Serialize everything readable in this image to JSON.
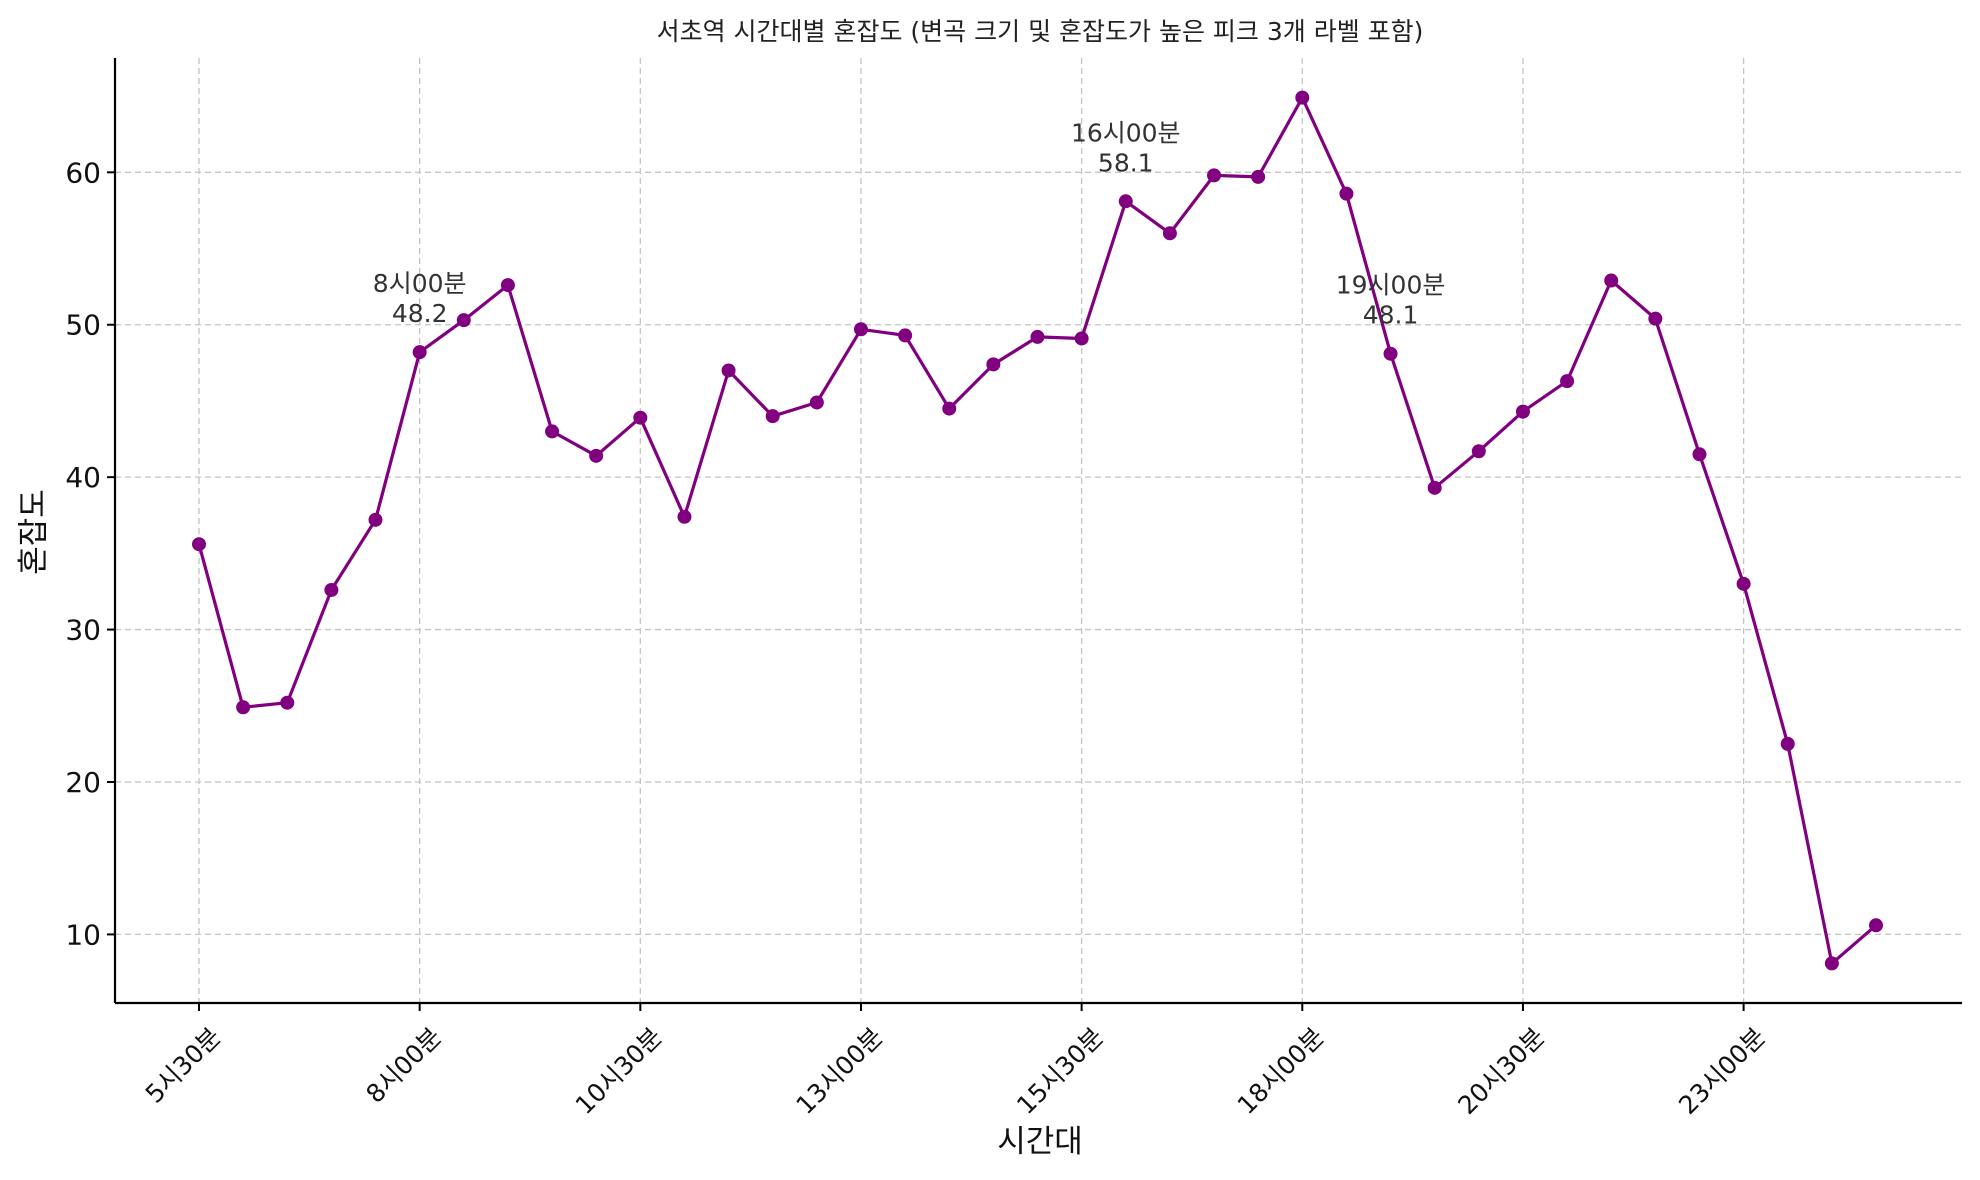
{
  "chart_data": {
    "type": "line",
    "title": "서초역 시간대별 혼잡도 (변곡 크기 및 혼잡도가 높은 피크 3개 라벨 포함)",
    "xlabel": "시간대",
    "ylabel": "혼잡도",
    "ylim": [
      5.5,
      67.5
    ],
    "yticks": [
      10,
      20,
      30,
      40,
      50,
      60
    ],
    "grid": true,
    "line_color": "#800080",
    "categories": [
      "5시30분",
      "6시00분",
      "6시30분",
      "7시00분",
      "7시30분",
      "8시00분",
      "8시30분",
      "9시00분",
      "9시30분",
      "10시00분",
      "10시30분",
      "11시00분",
      "11시30분",
      "12시00분",
      "12시30분",
      "13시00분",
      "13시30분",
      "14시00분",
      "14시30분",
      "15시00분",
      "15시30분",
      "16시00분",
      "16시30분",
      "17시00분",
      "17시30분",
      "18시00분",
      "18시30분",
      "19시00분",
      "19시30분",
      "20시00분",
      "20시30분",
      "21시00분",
      "21시30분",
      "22시00분",
      "22시30분",
      "23시00분",
      "23시30분",
      "24시00분",
      "24시30분"
    ],
    "xtick_labels": [
      "5시30분",
      "8시00분",
      "10시30분",
      "13시00분",
      "15시30분",
      "18시00분",
      "20시30분",
      "23시00분"
    ],
    "series": [
      {
        "values": [
          35.6,
          24.9,
          25.2,
          32.6,
          37.2,
          48.2,
          50.3,
          52.6,
          43.0,
          41.4,
          43.9,
          37.4,
          47.0,
          44.0,
          44.9,
          49.7,
          49.3,
          44.5,
          47.4,
          49.2,
          49.1,
          58.1,
          56.0,
          59.8,
          59.7,
          64.9,
          58.6,
          48.1,
          39.3,
          41.7,
          44.3,
          46.3,
          52.9,
          50.4,
          41.5,
          33.0,
          22.5,
          8.1,
          10.6
        ]
      }
    ],
    "annotations": [
      {
        "x": "8시00분",
        "label": "8시00분",
        "value": "48.2"
      },
      {
        "x": "16시00분",
        "label": "16시00분",
        "value": "58.1"
      },
      {
        "x": "19시00분",
        "label": "19시00분",
        "value": "48.1"
      }
    ]
  }
}
